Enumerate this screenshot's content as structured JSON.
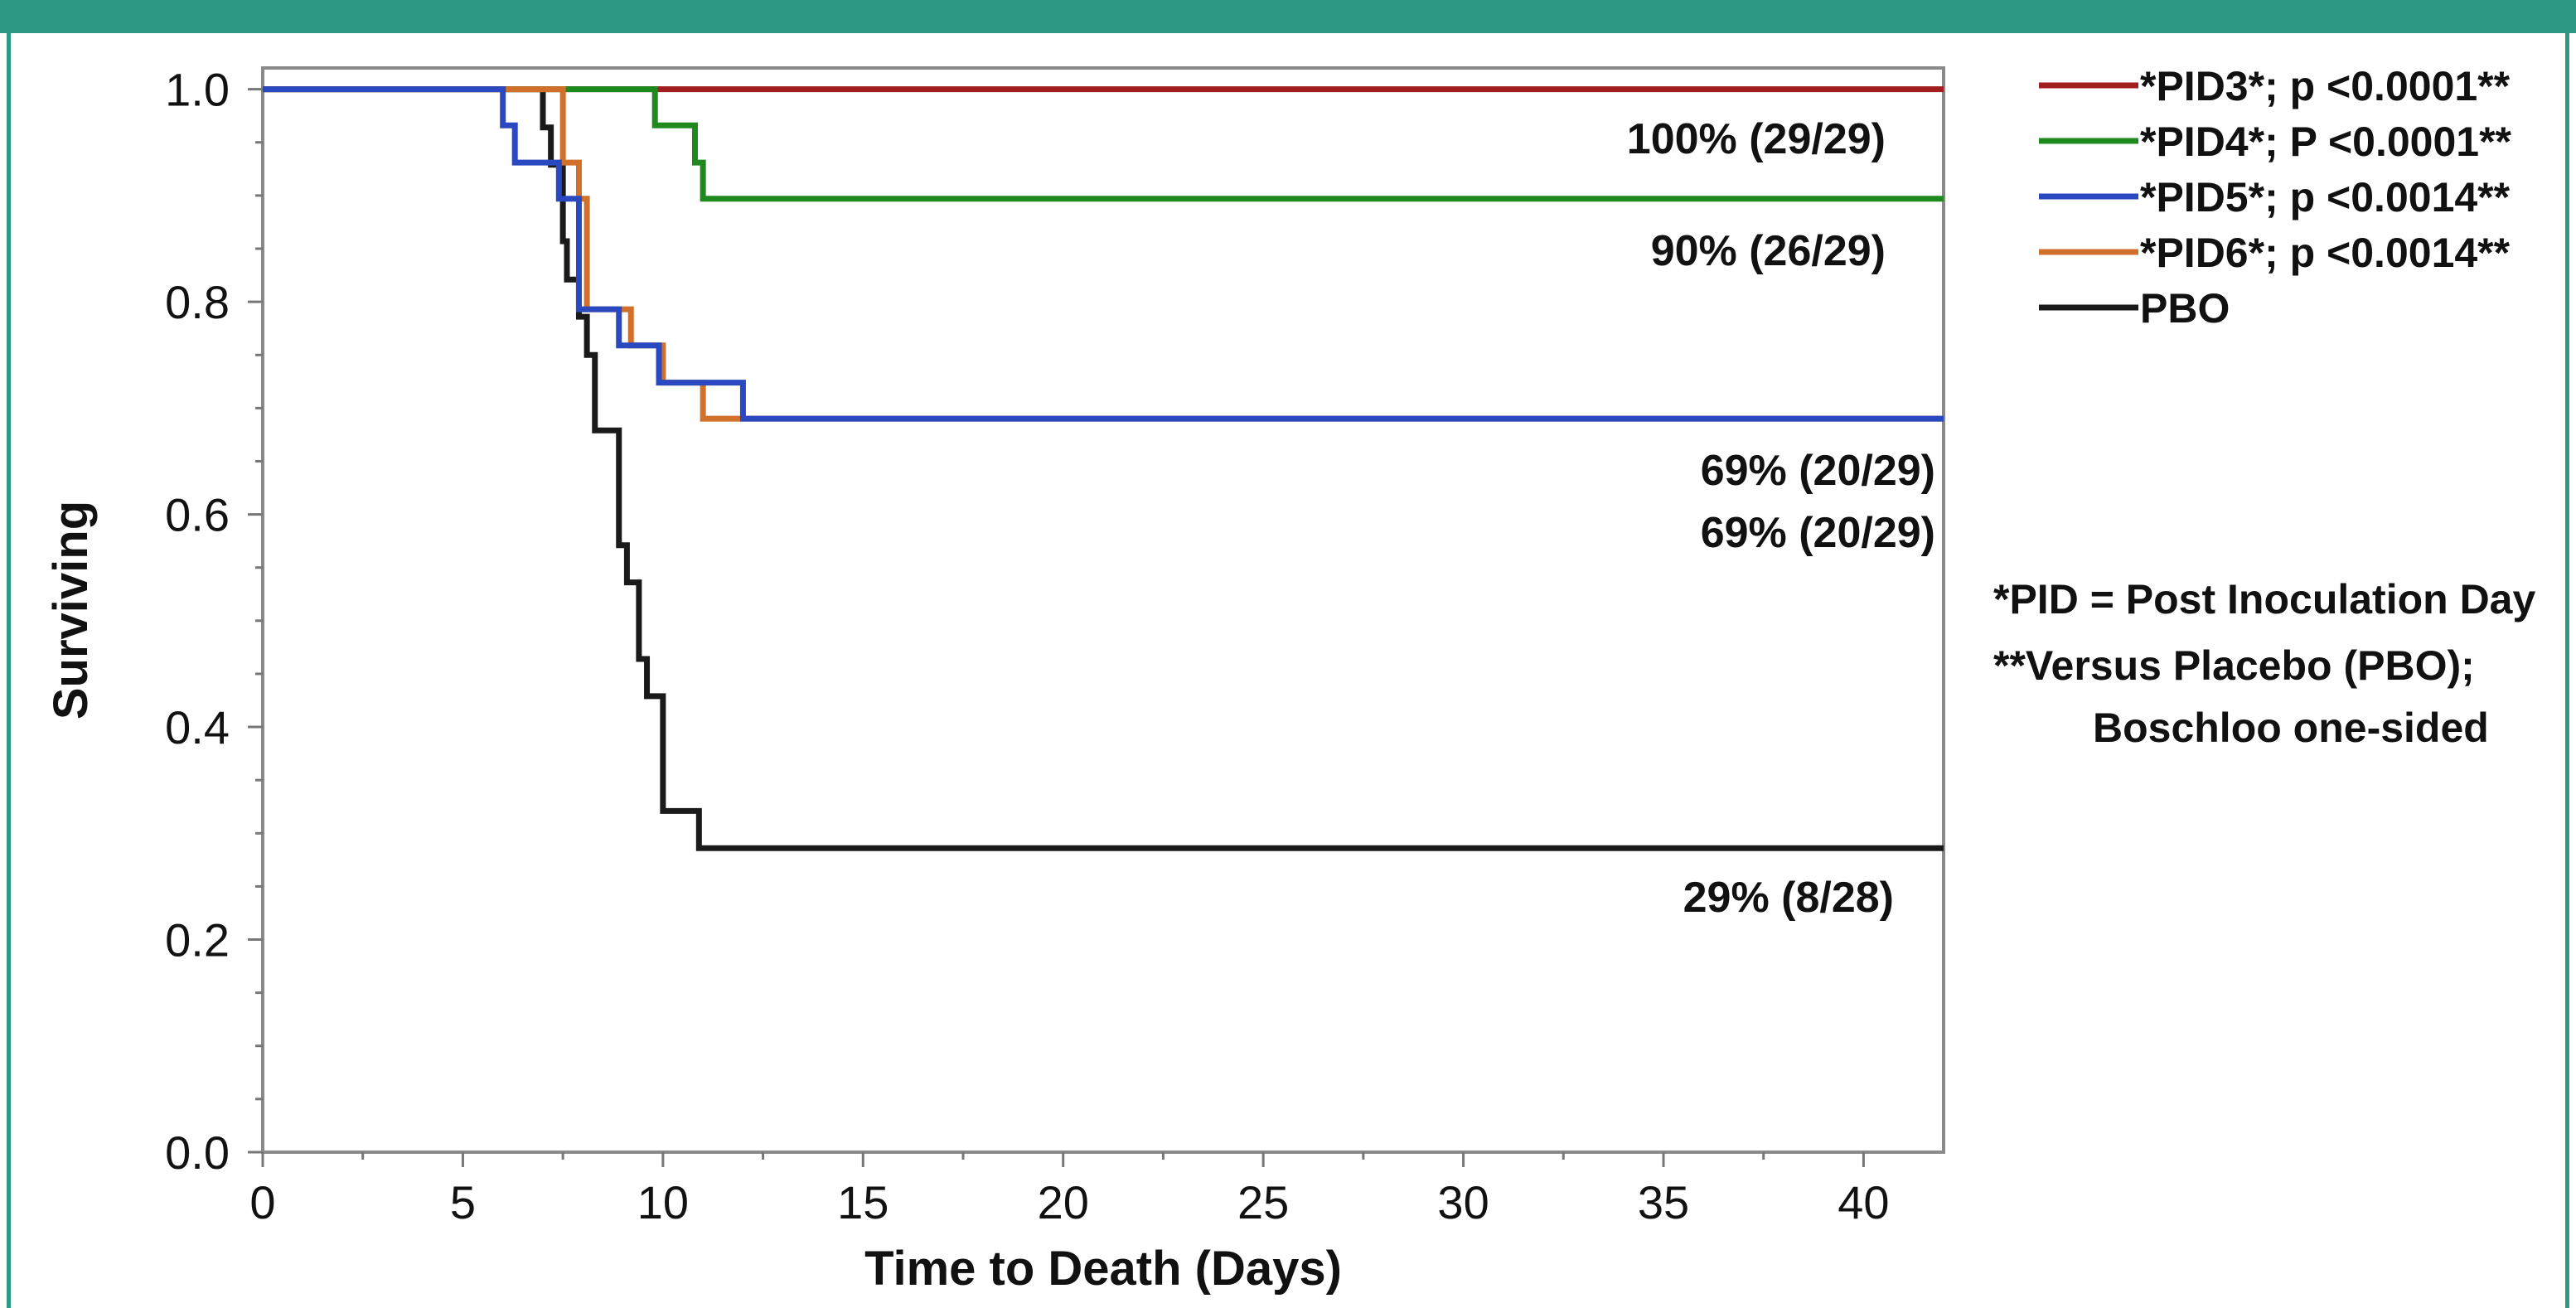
{
  "title": "",
  "chart_data": {
    "type": "line",
    "step": true,
    "xlabel": "Time to Death (Days)",
    "ylabel": "Surviving",
    "xlim": [
      0,
      42
    ],
    "ylim": [
      0,
      1.02
    ],
    "xticks": [
      0,
      5,
      10,
      15,
      20,
      25,
      30,
      35,
      40
    ],
    "xtick_labels": [
      "0",
      "5",
      "10",
      "15",
      "20",
      "25",
      "30",
      "35",
      "40"
    ],
    "yticks": [
      0,
      0.2,
      0.4,
      0.6,
      0.8,
      1.0
    ],
    "ytick_labels": [
      "0.0",
      "0.2",
      "0.4",
      "0.6",
      "0.8",
      "1.0"
    ],
    "grid": false,
    "legend_position": "right",
    "series": [
      {
        "name": "*PID3*;  p <0.0001**",
        "color": "#a01e1e",
        "x": [
          0,
          42
        ],
        "y": [
          1.0,
          1.0
        ],
        "end_label": "100% (29/29)"
      },
      {
        "name": "*PID4*;  P <0.0001**",
        "color": "#1e8a1e",
        "x": [
          0,
          9.8,
          10.8,
          11.0,
          42
        ],
        "y": [
          1.0,
          0.966,
          0.931,
          0.897,
          0.897
        ],
        "end_label": "90% (26/29)"
      },
      {
        "name": "*PID5*;  p <0.0014**",
        "color": "#2a48c0",
        "x": [
          0,
          6.0,
          6.3,
          7.4,
          7.9,
          8.9,
          9.9,
          12.0,
          42
        ],
        "y": [
          1.0,
          0.966,
          0.931,
          0.897,
          0.793,
          0.759,
          0.724,
          0.69,
          0.69
        ],
        "end_label": "69% (20/29)"
      },
      {
        "name": "*PID6*;  p <0.0014**",
        "color": "#d0702a",
        "x": [
          0,
          7.5,
          7.9,
          8.1,
          9.2,
          10.0,
          11.0,
          42
        ],
        "y": [
          1.0,
          0.931,
          0.897,
          0.793,
          0.759,
          0.724,
          0.69,
          0.69
        ],
        "end_label": "69% (20/29)"
      },
      {
        "name": "PBO",
        "color": "#1a1a1a",
        "x": [
          0,
          7.0,
          7.2,
          7.5,
          7.6,
          7.9,
          8.1,
          8.3,
          8.9,
          9.1,
          9.4,
          9.6,
          10.0,
          10.9,
          42
        ],
        "y": [
          1.0,
          0.964,
          0.929,
          0.857,
          0.821,
          0.786,
          0.75,
          0.679,
          0.571,
          0.536,
          0.464,
          0.429,
          0.321,
          0.286,
          0.286
        ],
        "end_label": "29% (8/28)"
      }
    ],
    "annotations": [
      "*PID = Post Inoculation Day",
      "**Versus Placebo (PBO);",
      "Boschloo one-sided"
    ]
  }
}
